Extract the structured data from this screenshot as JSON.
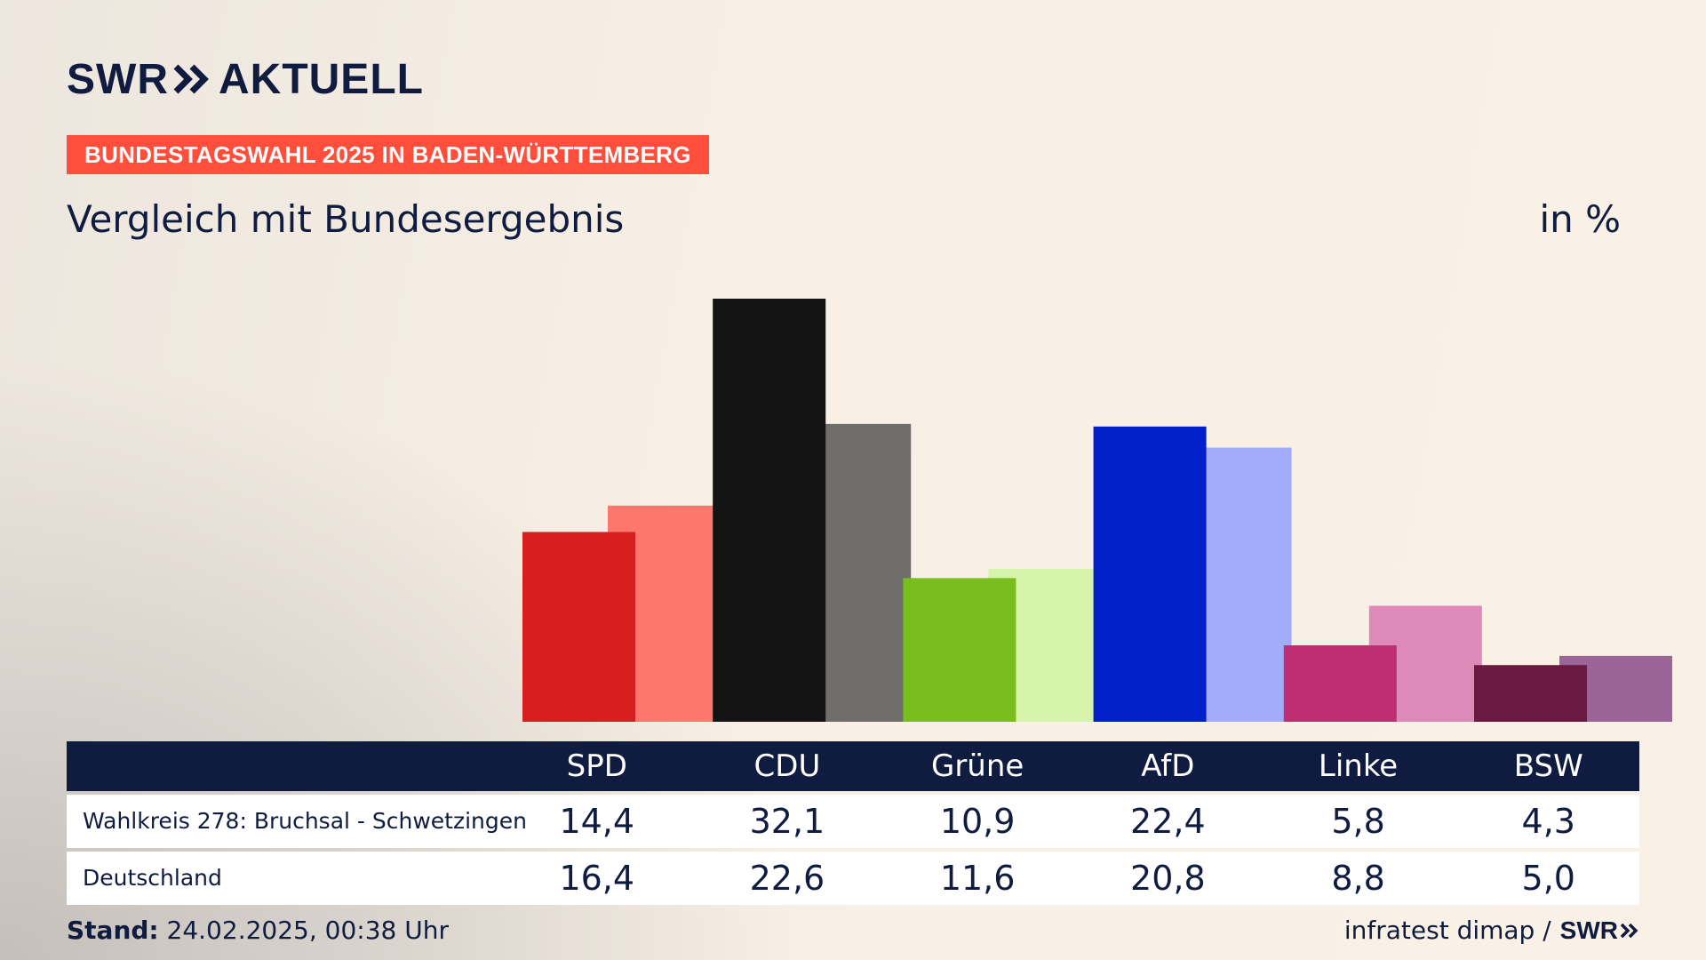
{
  "brand": {
    "logo_left": "SWR",
    "logo_right": "AKTUELL",
    "logo_icon": "double-chevron-icon",
    "primary_color": "#0f1c3f",
    "accent_color": "#ff4e3c"
  },
  "header": {
    "tag": "BUNDESTAGSWAHL 2025 IN BADEN-WÜRTTEMBERG",
    "subtitle": "Vergleich mit Bundesergebnis",
    "unit": "in %"
  },
  "chart_data": {
    "type": "bar",
    "categories": [
      "SPD",
      "CDU",
      "Grüne",
      "AfD",
      "Linke",
      "BSW"
    ],
    "series": [
      {
        "name": "Wahlkreis 278: Bruchsal - Schwetzingen",
        "values": [
          14.4,
          32.1,
          10.9,
          22.4,
          5.8,
          4.3
        ],
        "display": [
          "14,4",
          "32,1",
          "10,9",
          "22,4",
          "5,8",
          "4,3"
        ],
        "colors": [
          "#d71f1f",
          "#141414",
          "#79be1e",
          "#0020c9",
          "#bd2f72",
          "#6a1a40"
        ]
      },
      {
        "name": "Deutschland",
        "values": [
          16.4,
          22.6,
          11.6,
          20.8,
          8.8,
          5.0
        ],
        "display": [
          "16,4",
          "22,6",
          "11,6",
          "20,8",
          "8,8",
          "5,0"
        ],
        "colors": [
          "#ff766d",
          "#706e6b",
          "#d6f5ab",
          "#a1acfa",
          "#de8ab8",
          "#9b6497"
        ]
      }
    ],
    "ylim": [
      0,
      32.1
    ],
    "grid": false,
    "legend": "table-below"
  },
  "footer": {
    "stand_label": "Stand:",
    "stand_value": "24.02.2025, 00:38 Uhr",
    "source": "infratest dimap /",
    "source_logo": "SWR"
  }
}
